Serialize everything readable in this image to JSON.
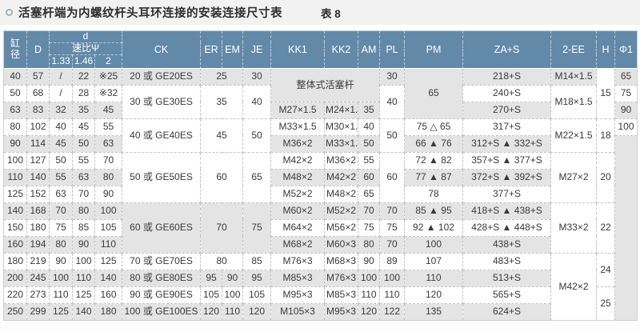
{
  "page": {
    "title": "活塞杆端为内螺纹杆头耳环连接的安装连接尺寸表",
    "table_label": "表 8"
  },
  "colors": {
    "header_bg": "#6389a8",
    "row_alt": "#e4e4e4",
    "row_white": "#ffffff",
    "header_text": "#ffffff",
    "body_text": "#3a3a3a"
  },
  "table": {
    "columns": {
      "bore": "缸\n径",
      "d_cap": "D",
      "d_group": "d",
      "ratio": "速比Ψ",
      "r133": "1.33",
      "r146": "1.46",
      "r2": "2",
      "ck": "CK",
      "er": "ER",
      "em": "EM",
      "je": "JE",
      "kk1": "KK1",
      "kk2": "KK2",
      "am": "AM",
      "pl": "PL",
      "pm": "PM",
      "zas": "ZA+S",
      "ee": "2-EE",
      "h": "H",
      "phi1": "Φ1"
    },
    "rows": [
      [
        "40",
        "57",
        "/",
        "22",
        "※25",
        "20 或 GE20ES",
        {
          "v": "25",
          "cs": 2
        },
        "30",
        {
          "v": "整体式活塞杆",
          "cs": 3,
          "rs": 2
        },
        "30",
        {
          "v": "65",
          "rs": 3
        },
        "218+S",
        "M14×1.5",
        {
          "v": "15",
          "rs": 3,
          "bg": "w"
        },
        "65"
      ],
      [
        "50",
        "68",
        "/",
        "28",
        "※32",
        {
          "v": "30 或 GE30ES",
          "rs": 2
        },
        {
          "v": "35",
          "cs": 2,
          "rs": 2
        },
        {
          "v": "40",
          "rs": 2
        },
        {
          "v": "40",
          "rs": 2
        },
        "240+S",
        {
          "v": "M18×1.5",
          "rs": 2
        },
        "75"
      ],
      [
        "63",
        "83",
        "32",
        "35",
        "45",
        "M27×1.5",
        "M24×1.5",
        "35",
        "270+S",
        "90"
      ],
      [
        "80",
        "102",
        "40",
        "45",
        "55",
        {
          "v": "40 或 GE40ES",
          "rs": 2
        },
        {
          "v": "45",
          "cs": 2,
          "rs": 2
        },
        {
          "v": "50",
          "rs": 2
        },
        "M33×1.5",
        "M30×1.5",
        "40",
        {
          "v": "50",
          "rs": 2
        },
        "75 △ 65",
        "317+S",
        {
          "v": "M22×1.5",
          "rs": 2
        },
        {
          "v": "18",
          "rs": 2
        },
        "100"
      ],
      [
        "90",
        "114",
        "45",
        "50",
        "63",
        "M36×2",
        "M33×1.5",
        "50",
        "66 ▲ 76",
        "312+S ▲ 332+S",
        {
          "v": "",
          "rs": 11,
          "bg": "g"
        }
      ],
      [
        "100",
        "127",
        "50",
        "55",
        "70",
        {
          "v": "50 或 GE50ES",
          "rs": 3
        },
        {
          "v": "60",
          "cs": 2,
          "rs": 3
        },
        {
          "v": "65",
          "rs": 3
        },
        "M42×2",
        "M36×2",
        "55",
        {
          "v": "60",
          "rs": 3
        },
        "72 ▲ 82",
        "357+S ▲ 377+S",
        {
          "v": "M27×2",
          "rs": 3
        },
        {
          "v": "20",
          "rs": 3
        }
      ],
      [
        "110",
        "140",
        "55",
        "63",
        "80",
        "M48×2",
        "M42×2",
        "60",
        "77 ▲ 87",
        "372+S ▲ 392+S"
      ],
      [
        "125",
        "152",
        "63",
        "70",
        "90",
        "M52×2",
        "M48×2",
        "65",
        "78",
        "377+S"
      ],
      [
        "140",
        "168",
        "70",
        "80",
        "100",
        {
          "v": "60 或 GE60ES",
          "rs": 3
        },
        {
          "v": "70",
          "cs": 2,
          "rs": 3
        },
        {
          "v": "75",
          "rs": 3
        },
        "M60×2",
        "M52×2",
        "70",
        "70",
        "85 ▲ 95",
        "418+S ▲ 438+S",
        {
          "v": "M33×2",
          "rs": 3,
          "bg": "w"
        },
        {
          "v": "22",
          "rs": 3,
          "bg": "w"
        }
      ],
      [
        "150",
        "180",
        "75",
        "85",
        "105",
        "M64×2",
        "M56×2",
        "75",
        "75",
        "92 ▲ 102",
        "428+S ▲ 448+S"
      ],
      [
        "160",
        "194",
        "80",
        "90",
        "110",
        "M68×2",
        "M60×3",
        "80",
        "70",
        "100",
        "438+S"
      ],
      [
        "180",
        "219",
        "90",
        "100",
        "125",
        "70 或 GE70ES",
        {
          "v": "80",
          "cs": 2
        },
        "85",
        "M76×3",
        "M68×3",
        "90",
        "89",
        "107",
        "483+S",
        {
          "v": "M42×2",
          "rs": 4
        },
        {
          "v": "24",
          "rs": 2
        }
      ],
      [
        "200",
        "245",
        "100",
        "110",
        "140",
        "80 或 GE80ES",
        "95",
        "90",
        "95",
        "M85×3",
        "M76×3",
        "100",
        "100",
        "110",
        "513+S"
      ],
      [
        "220",
        "273",
        "110",
        "125",
        "160",
        "90 或 GE90ES",
        "105",
        "100",
        "105",
        "M95×3",
        "M85×3",
        "110",
        "110",
        "120",
        "565+S",
        {
          "v": "25",
          "rs": 2
        }
      ],
      [
        "250",
        "299",
        "125",
        "140",
        "180",
        "100 或 GE100ES",
        "120",
        "110",
        "120",
        "M105×3",
        "M95×3",
        "120",
        "122",
        "135",
        "624+S"
      ]
    ]
  }
}
